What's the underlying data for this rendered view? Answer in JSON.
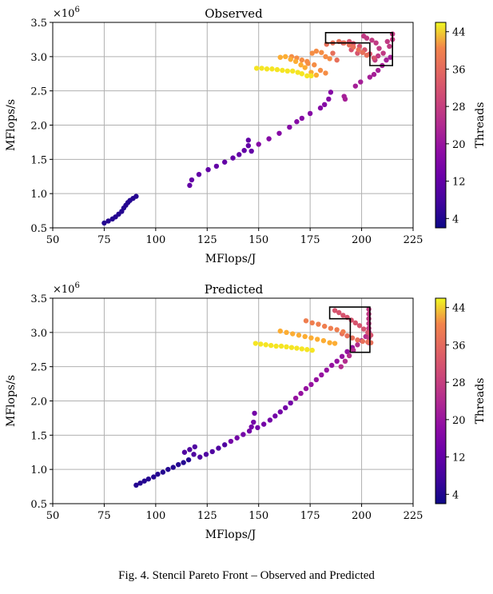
{
  "figure": {
    "caption": "Fig. 4.   Stencil Pareto Front – Observed and Predicted",
    "colorbar_label": "Threads",
    "colorbar_ticks": [
      "4",
      "12",
      "20",
      "28",
      "36",
      "44"
    ],
    "colormap": "plasma"
  },
  "chart_data": [
    {
      "type": "scatter",
      "title": "Observed",
      "xlabel": "MFlops/J",
      "ylabel": "MFlops/s",
      "y_multiplier": "×10^6",
      "y_multiplier_text": "×10",
      "y_multiplier_exp": "6",
      "xlim": [
        50,
        225
      ],
      "ylim": [
        0.5,
        3.5
      ],
      "xticks": [
        "50",
        "75",
        "100",
        "125",
        "150",
        "175",
        "200",
        "225"
      ],
      "yticks": [
        "0.5",
        "1.0",
        "1.5",
        "2.0",
        "2.5",
        "3.0",
        "3.5"
      ],
      "grid": true,
      "color_by": "Threads",
      "color_range": [
        2,
        46
      ],
      "highlight_polygon": [
        [
          182.5,
          3.35
        ],
        [
          215,
          3.35
        ],
        [
          215,
          2.87
        ],
        [
          204,
          2.87
        ],
        [
          204,
          3.2
        ],
        [
          182.5,
          3.2
        ]
      ],
      "series": [
        {
          "threads": 4,
          "points": [
            [
              75,
              0.57
            ],
            [
              77,
              0.6
            ],
            [
              79,
              0.63
            ],
            [
              80.5,
              0.66
            ],
            [
              82,
              0.7
            ],
            [
              83.5,
              0.74
            ],
            [
              84.5,
              0.79
            ],
            [
              85.5,
              0.83
            ],
            [
              86.5,
              0.87
            ],
            [
              87.5,
              0.9
            ],
            [
              89,
              0.93
            ],
            [
              90.5,
              0.96
            ]
          ]
        },
        {
          "threads": 10,
          "points": [
            [
              116.5,
              1.12
            ],
            [
              117.5,
              1.2
            ],
            [
              121,
              1.28
            ],
            [
              125.5,
              1.35
            ],
            [
              129.5,
              1.4
            ],
            [
              133.5,
              1.46
            ],
            [
              137.5,
              1.52
            ],
            [
              140.5,
              1.57
            ],
            [
              143,
              1.63
            ],
            [
              145,
              1.7
            ],
            [
              145,
              1.78
            ],
            [
              146.5,
              1.62
            ]
          ]
        },
        {
          "threads": 14,
          "points": [
            [
              150,
              1.72
            ],
            [
              155,
              1.8
            ],
            [
              160,
              1.88
            ],
            [
              165,
              1.97
            ],
            [
              168.5,
              2.05
            ],
            [
              171,
              2.1
            ],
            [
              175,
              2.17
            ],
            [
              180,
              2.25
            ],
            [
              182,
              2.3
            ],
            [
              184,
              2.38
            ],
            [
              185,
              2.48
            ]
          ]
        },
        {
          "threads": 18,
          "points": [
            [
              191.5,
              2.42
            ],
            [
              192,
              2.38
            ],
            [
              197,
              2.57
            ],
            [
              199.5,
              2.63
            ],
            [
              204,
              2.7
            ],
            [
              206,
              2.74
            ],
            [
              208,
              2.8
            ],
            [
              210,
              2.87
            ],
            [
              212,
              2.95
            ],
            [
              214,
              2.99
            ]
          ]
        },
        {
          "threads": 22,
          "points": [
            [
              201,
              3.3
            ],
            [
              202.5,
              3.27
            ],
            [
              205,
              3.24
            ],
            [
              207,
              3.2
            ],
            [
              208.5,
              3.12
            ],
            [
              210.5,
              3.05
            ],
            [
              213.5,
              3.15
            ],
            [
              215,
              3.25
            ],
            [
              215,
              3.33
            ],
            [
              212.5,
              3.22
            ],
            [
              208,
              3.01
            ],
            [
              206.5,
              2.95
            ]
          ]
        },
        {
          "threads": 26,
          "points": [
            [
              191,
              3.2
            ],
            [
              194,
              3.22
            ],
            [
              196,
              3.19
            ],
            [
              199,
              3.15
            ],
            [
              201.5,
              3.1
            ],
            [
              204,
              3.04
            ],
            [
              206,
              2.98
            ],
            [
              198,
              3.05
            ],
            [
              195,
              3.1
            ]
          ]
        },
        {
          "threads": 30,
          "points": [
            [
              183,
              3.18
            ],
            [
              186,
              3.2
            ],
            [
              189,
              3.22
            ],
            [
              191.5,
              3.2
            ],
            [
              194,
              3.17
            ],
            [
              196,
              3.14
            ],
            [
              198.5,
              3.1
            ],
            [
              200.5,
              3.06
            ],
            [
              202.5,
              3.02
            ],
            [
              186,
              3.05
            ],
            [
              188,
              2.95
            ]
          ]
        },
        {
          "threads": 34,
          "points": [
            [
              166,
              3.0
            ],
            [
              168.5,
              2.98
            ],
            [
              171,
              2.95
            ],
            [
              173.5,
              2.93
            ],
            [
              176,
              3.05
            ],
            [
              178,
              3.08
            ],
            [
              180.5,
              3.06
            ],
            [
              182.5,
              3.0
            ],
            [
              184.5,
              2.97
            ],
            [
              174,
              2.9
            ],
            [
              177,
              2.88
            ],
            [
              180,
              2.8
            ],
            [
              182.5,
              2.76
            ]
          ]
        },
        {
          "threads": 38,
          "points": [
            [
              160.5,
              2.99
            ],
            [
              163,
              3.0
            ],
            [
              165.5,
              2.96
            ],
            [
              168,
              2.93
            ],
            [
              170.5,
              2.88
            ],
            [
              172.5,
              2.84
            ],
            [
              175.5,
              2.77
            ],
            [
              178,
              2.73
            ]
          ]
        },
        {
          "threads": 44,
          "points": [
            [
              149,
              2.83
            ],
            [
              151.5,
              2.83
            ],
            [
              154,
              2.82
            ],
            [
              156.5,
              2.82
            ],
            [
              159,
              2.81
            ],
            [
              161.5,
              2.8
            ],
            [
              164,
              2.79
            ],
            [
              166.5,
              2.79
            ],
            [
              169,
              2.77
            ],
            [
              171,
              2.75
            ],
            [
              173.5,
              2.72
            ],
            [
              175.5,
              2.72
            ]
          ]
        }
      ]
    },
    {
      "type": "scatter",
      "title": "Predicted",
      "xlabel": "MFlops/J",
      "ylabel": "MFlops/s",
      "y_multiplier": "×10^6",
      "y_multiplier_text": "×10",
      "y_multiplier_exp": "6",
      "xlim": [
        50,
        225
      ],
      "ylim": [
        0.5,
        3.5
      ],
      "xticks": [
        "50",
        "75",
        "100",
        "125",
        "150",
        "175",
        "200",
        "225"
      ],
      "yticks": [
        "0.5",
        "1.0",
        "1.5",
        "2.0",
        "2.5",
        "3.0",
        "3.5"
      ],
      "grid": true,
      "color_by": "Threads",
      "color_range": [
        2,
        46
      ],
      "highlight_polygon": [
        [
          184.5,
          3.37
        ],
        [
          204,
          3.37
        ],
        [
          204,
          2.71
        ],
        [
          194.5,
          2.71
        ],
        [
          194.5,
          3.2
        ],
        [
          184.5,
          3.2
        ]
      ],
      "series": [
        {
          "threads": 4,
          "points": [
            [
              90.5,
              0.77
            ],
            [
              92.5,
              0.8
            ],
            [
              94.5,
              0.83
            ],
            [
              96.5,
              0.86
            ],
            [
              99,
              0.89
            ],
            [
              101,
              0.93
            ],
            [
              103.5,
              0.96
            ],
            [
              106,
              1.0
            ],
            [
              108.5,
              1.03
            ],
            [
              111,
              1.07
            ],
            [
              113.5,
              1.1
            ],
            [
              116,
              1.14
            ]
          ]
        },
        {
          "threads": 8,
          "points": [
            [
              114,
              1.25
            ],
            [
              116.5,
              1.29
            ],
            [
              119,
              1.33
            ],
            [
              118.5,
              1.22
            ],
            [
              121.5,
              1.18
            ],
            [
              124.5,
              1.22
            ],
            [
              127.5,
              1.26
            ],
            [
              130.5,
              1.31
            ],
            [
              133.5,
              1.36
            ]
          ]
        },
        {
          "threads": 12,
          "points": [
            [
              136.5,
              1.41
            ],
            [
              139.5,
              1.46
            ],
            [
              142.5,
              1.51
            ],
            [
              145.5,
              1.56
            ],
            [
              146.5,
              1.62
            ],
            [
              148,
              1.82
            ],
            [
              147.5,
              1.69
            ],
            [
              149.5,
              1.61
            ],
            [
              152.5,
              1.66
            ],
            [
              155.5,
              1.72
            ],
            [
              158,
              1.78
            ],
            [
              160.5,
              1.84
            ],
            [
              163,
              1.9
            ],
            [
              165.5,
              1.97
            ]
          ]
        },
        {
          "threads": 16,
          "points": [
            [
              168,
              2.04
            ],
            [
              170.5,
              2.11
            ],
            [
              173,
              2.18
            ],
            [
              175.5,
              2.24
            ],
            [
              178,
              2.31
            ],
            [
              180.5,
              2.38
            ],
            [
              183,
              2.45
            ],
            [
              185.5,
              2.52
            ],
            [
              188,
              2.58
            ],
            [
              190.5,
              2.65
            ],
            [
              193,
              2.72
            ],
            [
              195.5,
              2.78
            ]
          ]
        },
        {
          "threads": 20,
          "points": [
            [
              190,
              2.5
            ],
            [
              192,
              2.58
            ],
            [
              194,
              2.66
            ],
            [
              196,
              2.74
            ],
            [
              198,
              2.82
            ],
            [
              200,
              2.88
            ],
            [
              202,
              2.94
            ],
            [
              203.5,
              3.01
            ]
          ]
        },
        {
          "threads": 22,
          "points": [
            [
              203.5,
              3.34
            ],
            [
              203.5,
              3.27
            ],
            [
              203.5,
              3.2
            ],
            [
              203.5,
              3.13
            ],
            [
              203.5,
              3.06
            ],
            [
              203.5,
              2.99
            ],
            [
              203.5,
              2.92
            ],
            [
              203.5,
              2.85
            ]
          ]
        },
        {
          "threads": 26,
          "points": [
            [
              187,
              3.32
            ],
            [
              189,
              3.29
            ],
            [
              191,
              3.25
            ],
            [
              193,
              3.22
            ],
            [
              195,
              3.18
            ],
            [
              197,
              3.14
            ],
            [
              199,
              3.1
            ],
            [
              201,
              3.05
            ],
            [
              203,
              3.0
            ],
            [
              204.5,
              2.96
            ]
          ]
        },
        {
          "threads": 30,
          "points": [
            [
              190.5,
              2.98
            ],
            [
              193,
              2.95
            ],
            [
              195.5,
              2.92
            ],
            [
              198,
              2.89
            ],
            [
              200.5,
              2.87
            ],
            [
              203,
              2.86
            ],
            [
              204.5,
              2.85
            ]
          ]
        },
        {
          "threads": 32,
          "points": [
            [
              173,
              3.17
            ],
            [
              176,
              3.14
            ],
            [
              179,
              3.12
            ],
            [
              182,
              3.09
            ],
            [
              185,
              3.06
            ],
            [
              188,
              3.04
            ],
            [
              191,
              3.01
            ]
          ]
        },
        {
          "threads": 38,
          "points": [
            [
              160.5,
              3.02
            ],
            [
              163.5,
              3.0
            ],
            [
              166.5,
              2.98
            ],
            [
              169.5,
              2.96
            ],
            [
              172.5,
              2.94
            ],
            [
              175.5,
              2.92
            ],
            [
              178.5,
              2.9
            ],
            [
              181.5,
              2.88
            ],
            [
              184.5,
              2.85
            ],
            [
              187,
              2.84
            ]
          ]
        },
        {
          "threads": 44,
          "points": [
            [
              148.5,
              2.84
            ],
            [
              151,
              2.83
            ],
            [
              153.5,
              2.82
            ],
            [
              156,
              2.81
            ],
            [
              158.5,
              2.8
            ],
            [
              161,
              2.8
            ],
            [
              163.5,
              2.79
            ],
            [
              166,
              2.78
            ],
            [
              168.5,
              2.77
            ],
            [
              171,
              2.76
            ],
            [
              173.5,
              2.75
            ],
            [
              176,
              2.74
            ]
          ]
        }
      ]
    }
  ]
}
